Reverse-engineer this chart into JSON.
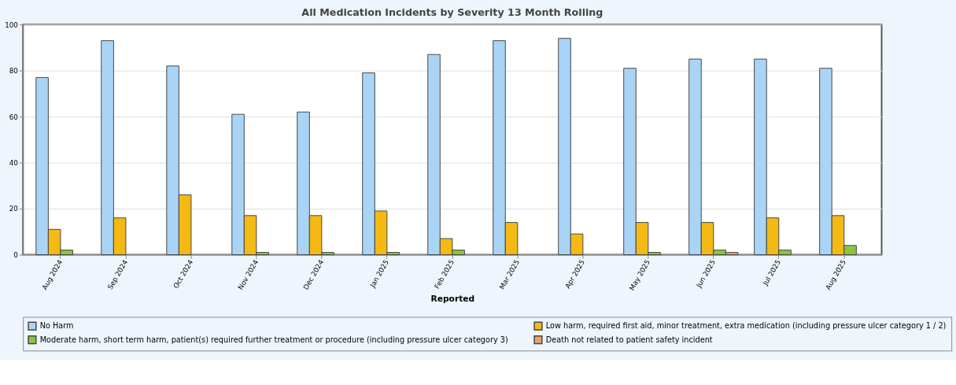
{
  "chart_data": {
    "type": "bar",
    "title": "All Medication Incidents by Severity 13 Month Rolling",
    "xlabel": "Reported",
    "categories": [
      "Aug 2024",
      "Sep 2024",
      "Oct 2024",
      "Nov 2024",
      "Dec 2024",
      "Jan 2025",
      "Feb 2025",
      "Mar 2025",
      "Apr 2025",
      "May 2025",
      "Jun 2025",
      "Jul 2025",
      "Aug 2025"
    ],
    "series": [
      {
        "name": "No Harm",
        "color": "#aad4f5",
        "values": [
          77,
          93,
          82,
          61,
          62,
          79,
          87,
          93,
          94,
          81,
          85,
          85,
          81
        ]
      },
      {
        "name": "Low harm, required first aid, minor treatment, extra medication (including pressure ulcer category 1 / 2)",
        "color": "#f5b914",
        "values": [
          11,
          16,
          26,
          17,
          17,
          19,
          7,
          14,
          9,
          14,
          14,
          16,
          17
        ]
      },
      {
        "name": "Moderate harm, short term harm, patient(s) required further treatment or procedure (including pressure ulcer category 3)",
        "color": "#8cc63f",
        "values": [
          2,
          null,
          null,
          1,
          1,
          1,
          2,
          null,
          null,
          1,
          2,
          2,
          4
        ]
      },
      {
        "name": "Death not related to patient safety incident",
        "color": "#f0a070",
        "values": [
          null,
          null,
          null,
          null,
          null,
          null,
          null,
          null,
          null,
          null,
          1,
          null,
          null
        ]
      }
    ],
    "ylim": [
      0,
      100
    ],
    "yticks": [
      0,
      20,
      40,
      60,
      80,
      100
    ],
    "grid": "y",
    "legend": "bottom"
  }
}
